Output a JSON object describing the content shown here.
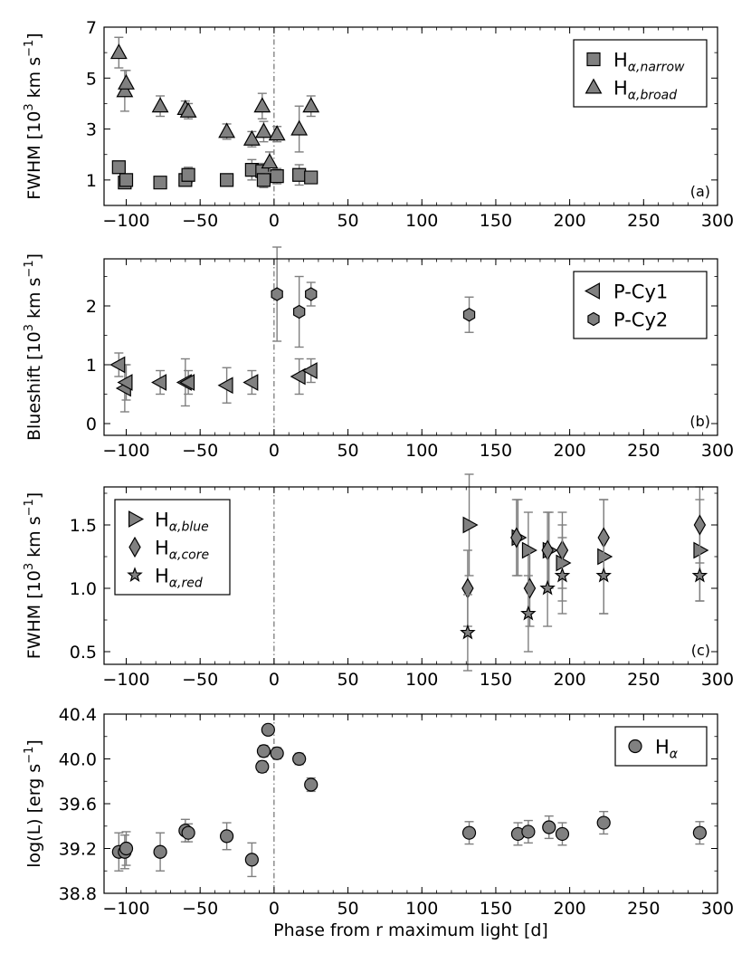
{
  "figure": {
    "xlabel": "Phase from r maximum light [d]"
  },
  "chart_data": [
    {
      "type": "scatter",
      "panel": "(a)",
      "ylabel": "FWHM [10^3 km s^-1]",
      "ylabel_parts": {
        "main": "FWHM [10",
        "exp1": "3",
        "mid": " km s",
        "exp2": "−1",
        "end": "]"
      },
      "xlim": [
        -115,
        300
      ],
      "ylim": [
        0,
        7
      ],
      "xticks": [
        -100,
        -50,
        0,
        50,
        100,
        150,
        200,
        250,
        300
      ],
      "xtick_labels": [
        "−100",
        "−50",
        "0",
        "50",
        "100",
        "150",
        "200",
        "250",
        "300"
      ],
      "yticks": [
        1,
        3,
        5,
        7
      ],
      "ytick_labels": [
        "1",
        "3",
        "5",
        "7"
      ],
      "yminor": [
        0,
        2,
        4,
        6
      ],
      "legend_position": "top-right",
      "series": [
        {
          "name": "Hα,narrow",
          "label_main": "H",
          "label_sub": "α,narrow",
          "marker": "square",
          "points": [
            {
              "x": -105,
              "y": 1.5,
              "err": 0.2
            },
            {
              "x": -101,
              "y": 0.9,
              "err": 0.2
            },
            {
              "x": -100,
              "y": 1.0,
              "err": 0.2
            },
            {
              "x": -77,
              "y": 0.9,
              "err": 0.2
            },
            {
              "x": -60,
              "y": 1.0,
              "err": 0.2
            },
            {
              "x": -58,
              "y": 1.2,
              "err": 0.3
            },
            {
              "x": -32,
              "y": 1.0,
              "err": 0.2
            },
            {
              "x": -15,
              "y": 1.4,
              "err": 0.4
            },
            {
              "x": -8,
              "y": 1.35,
              "err": 0.3
            },
            {
              "x": -7,
              "y": 1.0,
              "err": 0.3
            },
            {
              "x": 2,
              "y": 1.15,
              "err": 0.3
            },
            {
              "x": 17,
              "y": 1.2,
              "err": 0.4
            },
            {
              "x": 25,
              "y": 1.1,
              "err": 0.2
            }
          ]
        },
        {
          "name": "Hα,broad",
          "label_main": "H",
          "label_sub": "α,broad",
          "marker": "triangle",
          "points": [
            {
              "x": -105,
              "y": 6.0,
              "err": 0.6
            },
            {
              "x": -101,
              "y": 4.5,
              "err": 0.8
            },
            {
              "x": -100,
              "y": 4.8,
              "err": 0.5
            },
            {
              "x": -77,
              "y": 3.9,
              "err": 0.4
            },
            {
              "x": -60,
              "y": 3.8,
              "err": 0.3
            },
            {
              "x": -58,
              "y": 3.7,
              "err": 0.3
            },
            {
              "x": -32,
              "y": 2.9,
              "err": 0.3
            },
            {
              "x": -15,
              "y": 2.6,
              "err": 0.3
            },
            {
              "x": -8,
              "y": 3.9,
              "err": 0.5
            },
            {
              "x": -7,
              "y": 2.9,
              "err": 0.4
            },
            {
              "x": -3,
              "y": 1.7,
              "err": 0.4
            },
            {
              "x": 2,
              "y": 2.8,
              "err": 0.3
            },
            {
              "x": 17,
              "y": 3.0,
              "err": 0.9
            },
            {
              "x": 25,
              "y": 3.9,
              "err": 0.4
            }
          ]
        }
      ]
    },
    {
      "type": "scatter",
      "panel": "(b)",
      "ylabel": "Blueshift [10^3 km s^-1]",
      "ylabel_parts": {
        "main": "Blueshift [10",
        "exp1": "3",
        "mid": " km s",
        "exp2": "−1",
        "end": "]"
      },
      "xlim": [
        -115,
        300
      ],
      "ylim": [
        -0.2,
        2.8
      ],
      "xticks": [
        -100,
        -50,
        0,
        50,
        100,
        150,
        200,
        250,
        300
      ],
      "xtick_labels": [
        "−100",
        "−50",
        "0",
        "50",
        "100",
        "150",
        "200",
        "250",
        "300"
      ],
      "yticks": [
        0,
        1,
        2
      ],
      "ytick_labels": [
        "0",
        "1",
        "2"
      ],
      "yminor": [
        0.5,
        1.5,
        2.5
      ],
      "legend_position": "top-right",
      "series": [
        {
          "name": "P-Cy1",
          "label_main": "P-Cy1",
          "label_sub": "",
          "marker": "triangle-left",
          "points": [
            {
              "x": -105,
              "y": 1.0,
              "err": 0.2
            },
            {
              "x": -101,
              "y": 0.6,
              "err": 0.4
            },
            {
              "x": -100,
              "y": 0.7,
              "err": 0.3
            },
            {
              "x": -77,
              "y": 0.7,
              "err": 0.2
            },
            {
              "x": -60,
              "y": 0.7,
              "err": 0.4
            },
            {
              "x": -58,
              "y": 0.7,
              "err": 0.2
            },
            {
              "x": -32,
              "y": 0.65,
              "err": 0.3
            },
            {
              "x": -15,
              "y": 0.7,
              "err": 0.2
            },
            {
              "x": 17,
              "y": 0.8,
              "err": 0.3
            },
            {
              "x": 25,
              "y": 0.9,
              "err": 0.2
            }
          ]
        },
        {
          "name": "P-Cy2",
          "label_main": "P-Cy2",
          "label_sub": "",
          "marker": "hexagon",
          "points": [
            {
              "x": 2,
              "y": 2.2,
              "err": 0.8
            },
            {
              "x": 17,
              "y": 1.9,
              "err": 0.6
            },
            {
              "x": 25,
              "y": 2.2,
              "err": 0.2
            },
            {
              "x": 132,
              "y": 1.85,
              "err": 0.3
            }
          ]
        }
      ]
    },
    {
      "type": "scatter",
      "panel": "(c)",
      "ylabel": "FWHM [10^3 km s^-1]",
      "ylabel_parts": {
        "main": "FWHM [10",
        "exp1": "3",
        "mid": " km s",
        "exp2": "−1",
        "end": "]"
      },
      "xlim": [
        -115,
        300
      ],
      "ylim": [
        0.4,
        1.8
      ],
      "xticks": [
        -100,
        -50,
        0,
        50,
        100,
        150,
        200,
        250,
        300
      ],
      "xtick_labels": [
        "−100",
        "−50",
        "0",
        "50",
        "100",
        "150",
        "200",
        "250",
        "300"
      ],
      "yticks": [
        0.5,
        1.0,
        1.5
      ],
      "ytick_labels": [
        "0.5",
        "1.0",
        "1.5"
      ],
      "yminor": [
        0.75,
        1.25,
        1.75
      ],
      "legend_position": "top-left",
      "series": [
        {
          "name": "Hα,blue",
          "label_main": "H",
          "label_sub": "α,blue",
          "marker": "triangle-right",
          "points": [
            {
              "x": 132,
              "y": 1.5,
              "err": 0.4
            },
            {
              "x": 165,
              "y": 1.4,
              "err": 0.3
            },
            {
              "x": 172,
              "y": 1.3,
              "err": 0.3
            },
            {
              "x": 186,
              "y": 1.3,
              "err": 0.3
            },
            {
              "x": 195,
              "y": 1.2,
              "err": 0.3
            },
            {
              "x": 223,
              "y": 1.25,
              "err": 0.45
            },
            {
              "x": 288,
              "y": 1.3,
              "err": 0.4
            }
          ]
        },
        {
          "name": "Hα,core",
          "label_main": "H",
          "label_sub": "α,core",
          "marker": "diamond",
          "points": [
            {
              "x": 131,
              "y": 1.0,
              "err": 0.3
            },
            {
              "x": 164,
              "y": 1.4,
              "err": 0.3
            },
            {
              "x": 173,
              "y": 1.0,
              "err": 0.3
            },
            {
              "x": 185,
              "y": 1.3,
              "err": 0.3
            },
            {
              "x": 195,
              "y": 1.3,
              "err": 0.3
            },
            {
              "x": 223,
              "y": 1.4,
              "err": 0.3
            },
            {
              "x": 288,
              "y": 1.5,
              "err": 0.3
            }
          ]
        },
        {
          "name": "Hα,red",
          "label_main": "H",
          "label_sub": "α,red",
          "marker": "star",
          "points": [
            {
              "x": 131,
              "y": 0.65,
              "err": 0.3
            },
            {
              "x": 172,
              "y": 0.8,
              "err": 0.3
            },
            {
              "x": 185,
              "y": 1.0,
              "err": 0.3
            },
            {
              "x": 195,
              "y": 1.1,
              "err": 0.3
            },
            {
              "x": 223,
              "y": 1.1,
              "err": 0.3
            },
            {
              "x": 288,
              "y": 1.1,
              "err": 0.2
            }
          ]
        }
      ]
    },
    {
      "type": "scatter",
      "panel": "",
      "ylabel": "log(L) [erg s^-1]",
      "ylabel_parts": {
        "main": "log(L) [erg s",
        "exp1": "−1",
        "mid": "",
        "exp2": "",
        "end": "]"
      },
      "xlim": [
        -115,
        300
      ],
      "ylim": [
        38.8,
        40.4
      ],
      "xticks": [
        -100,
        -50,
        0,
        50,
        100,
        150,
        200,
        250,
        300
      ],
      "xtick_labels": [
        "−100",
        "−50",
        "0",
        "50",
        "100",
        "150",
        "200",
        "250",
        "300"
      ],
      "yticks": [
        38.8,
        39.2,
        39.6,
        40.0,
        40.4
      ],
      "ytick_labels": [
        "38.8",
        "39.2",
        "39.6",
        "40.0",
        "40.4"
      ],
      "yminor": [
        39.0,
        39.4,
        39.8,
        40.2
      ],
      "legend_position": "top-right",
      "series": [
        {
          "name": "Hα",
          "label_main": "H",
          "label_sub": "α",
          "marker": "circle",
          "points": [
            {
              "x": -105,
              "y": 39.17,
              "err": 0.17
            },
            {
              "x": -101,
              "y": 39.17,
              "err": 0.15
            },
            {
              "x": -100,
              "y": 39.2,
              "err": 0.15
            },
            {
              "x": -77,
              "y": 39.17,
              "err": 0.17
            },
            {
              "x": -60,
              "y": 39.36,
              "err": 0.1
            },
            {
              "x": -58,
              "y": 39.34,
              "err": 0.08
            },
            {
              "x": -32,
              "y": 39.31,
              "err": 0.12
            },
            {
              "x": -15,
              "y": 39.1,
              "err": 0.15
            },
            {
              "x": -8,
              "y": 39.93,
              "err": 0.05
            },
            {
              "x": -7,
              "y": 40.07,
              "err": 0.05
            },
            {
              "x": -4,
              "y": 40.26,
              "err": 0.04
            },
            {
              "x": 2,
              "y": 40.05,
              "err": 0.05
            },
            {
              "x": 17,
              "y": 40.0,
              "err": 0.05
            },
            {
              "x": 25,
              "y": 39.77,
              "err": 0.06
            },
            {
              "x": 132,
              "y": 39.34,
              "err": 0.1
            },
            {
              "x": 165,
              "y": 39.33,
              "err": 0.1
            },
            {
              "x": 172,
              "y": 39.35,
              "err": 0.1
            },
            {
              "x": 186,
              "y": 39.39,
              "err": 0.1
            },
            {
              "x": 195,
              "y": 39.33,
              "err": 0.1
            },
            {
              "x": 223,
              "y": 39.43,
              "err": 0.1
            },
            {
              "x": 288,
              "y": 39.34,
              "err": 0.1
            }
          ]
        }
      ]
    }
  ]
}
